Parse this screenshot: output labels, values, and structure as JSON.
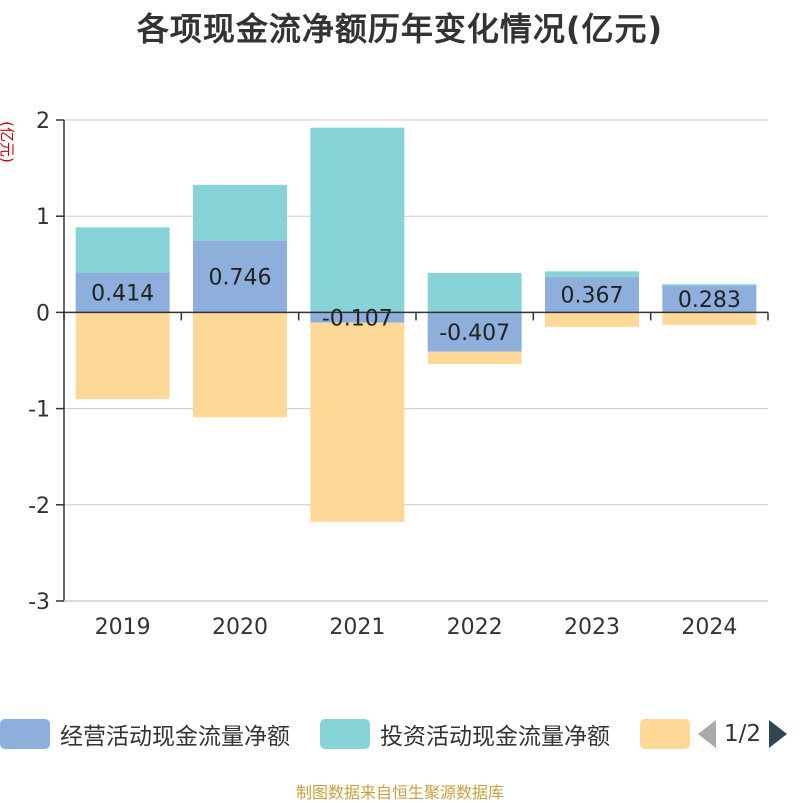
{
  "title": "各项现金流净额历年变化情况(亿元)",
  "source": "制图数据来自恒生聚源数据库",
  "pager": "1/2",
  "chart_data": {
    "type": "bar",
    "stacked": true,
    "ylabel": "(亿元)",
    "ylim": [
      -3,
      2
    ],
    "yticks": [
      2,
      1,
      0,
      -1,
      -2,
      -3
    ],
    "grid": true,
    "legend_position": "bottom",
    "categories": [
      "2019",
      "2020",
      "2021",
      "2022",
      "2023",
      "2024"
    ],
    "series": [
      {
        "name": "经营活动现金流量净额",
        "color": "#8eaedb",
        "values": [
          0.414,
          0.746,
          -0.107,
          -0.407,
          0.367,
          0.283
        ],
        "labels": [
          "0.414",
          "0.746",
          "-0.107",
          "-0.407",
          "0.367",
          "0.283"
        ]
      },
      {
        "name": "投资活动现金流量净额",
        "color": "#86d4d8",
        "values": [
          0.47,
          0.58,
          1.92,
          0.41,
          0.06,
          0.01
        ]
      },
      {
        "name": "",
        "color": "#fdd897",
        "values": [
          -0.9,
          -1.09,
          -2.07,
          -0.13,
          -0.15,
          -0.13
        ]
      }
    ]
  }
}
